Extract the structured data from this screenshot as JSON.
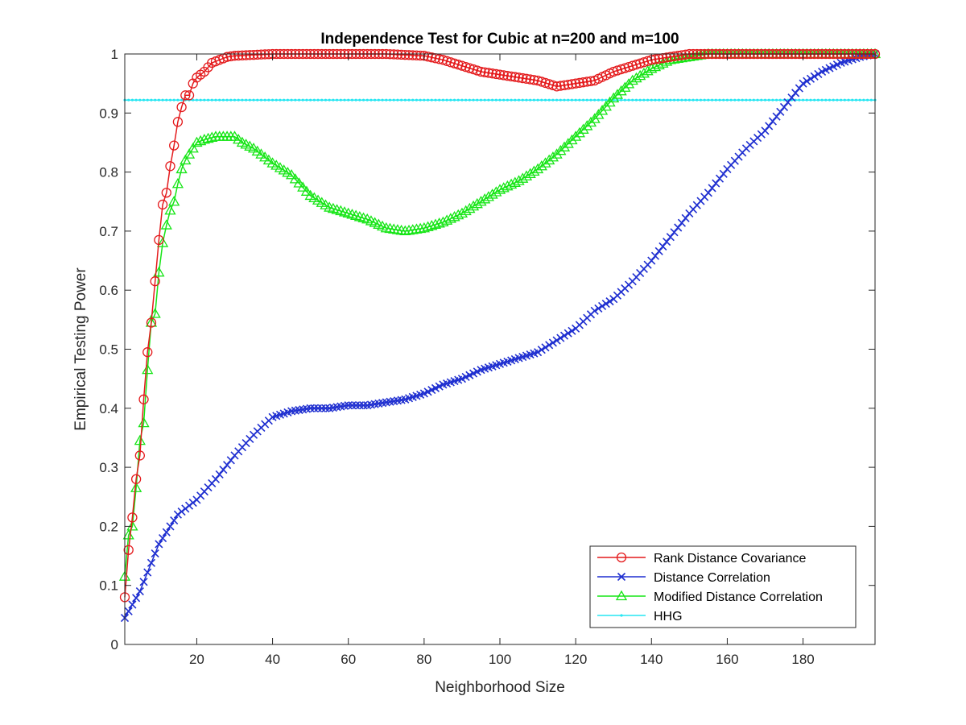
{
  "chart_data": {
    "type": "line",
    "title": "Independence Test for Cubic at n=200 and m=100",
    "xlabel": "Neighborhood Size",
    "ylabel": "Empirical Testing Power",
    "xlim": [
      1,
      199
    ],
    "ylim": [
      0,
      1
    ],
    "xticks": [
      20,
      40,
      60,
      80,
      100,
      120,
      140,
      160,
      180
    ],
    "yticks": [
      0,
      0.1,
      0.2,
      0.3,
      0.4,
      0.5,
      0.6,
      0.7,
      0.8,
      0.9,
      1
    ],
    "ytick_labels": [
      "0",
      "0.1",
      "0.2",
      "0.3",
      "0.4",
      "0.5",
      "0.6",
      "0.7",
      "0.8",
      "0.9",
      "1"
    ],
    "grid": false,
    "legend_position": "bottom-right",
    "series": [
      {
        "name": "Rank Distance Covariance",
        "color": "#e41a1c",
        "marker": "circle",
        "x": [
          1,
          2,
          3,
          4,
          5,
          6,
          7,
          8,
          9,
          10,
          11,
          12,
          13,
          14,
          15,
          16,
          17,
          18,
          19,
          20,
          22,
          24,
          26,
          28,
          30,
          40,
          50,
          60,
          70,
          80,
          85,
          90,
          95,
          100,
          105,
          110,
          115,
          120,
          125,
          130,
          135,
          140,
          145,
          150,
          155,
          160,
          170,
          180,
          190,
          199
        ],
        "y": [
          0.08,
          0.16,
          0.215,
          0.28,
          0.32,
          0.415,
          0.495,
          0.545,
          0.615,
          0.685,
          0.745,
          0.765,
          0.81,
          0.845,
          0.885,
          0.91,
          0.93,
          0.93,
          0.95,
          0.96,
          0.97,
          0.985,
          0.99,
          0.995,
          0.997,
          1,
          1,
          1,
          1,
          0.997,
          0.99,
          0.98,
          0.97,
          0.965,
          0.96,
          0.955,
          0.945,
          0.95,
          0.955,
          0.97,
          0.98,
          0.99,
          0.995,
          1,
          1,
          1,
          1,
          1,
          1,
          1
        ]
      },
      {
        "name": "Distance Correlation",
        "color": "#1f2fd0",
        "marker": "x",
        "x": [
          1,
          5,
          10,
          15,
          20,
          25,
          30,
          35,
          40,
          45,
          50,
          55,
          60,
          65,
          70,
          75,
          80,
          85,
          90,
          95,
          100,
          105,
          110,
          115,
          120,
          125,
          130,
          135,
          140,
          145,
          150,
          155,
          160,
          165,
          170,
          175,
          180,
          185,
          190,
          195,
          199
        ],
        "y": [
          0.045,
          0.09,
          0.17,
          0.22,
          0.245,
          0.28,
          0.32,
          0.355,
          0.385,
          0.395,
          0.4,
          0.4,
          0.405,
          0.405,
          0.41,
          0.415,
          0.425,
          0.44,
          0.45,
          0.465,
          0.475,
          0.485,
          0.495,
          0.515,
          0.535,
          0.565,
          0.585,
          0.615,
          0.65,
          0.69,
          0.73,
          0.765,
          0.805,
          0.84,
          0.87,
          0.91,
          0.95,
          0.97,
          0.985,
          0.995,
          1
        ]
      },
      {
        "name": "Modified Distance Correlation",
        "color": "#16e516",
        "marker": "triangle",
        "x": [
          1,
          2,
          3,
          4,
          5,
          6,
          7,
          8,
          9,
          10,
          11,
          12,
          13,
          14,
          15,
          16,
          17,
          18,
          19,
          20,
          22,
          25,
          28,
          30,
          32,
          35,
          40,
          45,
          50,
          55,
          60,
          65,
          70,
          75,
          80,
          85,
          90,
          95,
          100,
          105,
          110,
          115,
          120,
          125,
          130,
          135,
          140,
          145,
          150,
          155,
          160,
          170,
          180,
          190,
          199
        ],
        "y": [
          0.115,
          0.185,
          0.2,
          0.265,
          0.345,
          0.375,
          0.465,
          0.545,
          0.56,
          0.63,
          0.68,
          0.71,
          0.735,
          0.75,
          0.78,
          0.805,
          0.82,
          0.83,
          0.84,
          0.85,
          0.855,
          0.86,
          0.86,
          0.86,
          0.85,
          0.84,
          0.815,
          0.795,
          0.76,
          0.74,
          0.73,
          0.72,
          0.705,
          0.7,
          0.705,
          0.715,
          0.73,
          0.75,
          0.77,
          0.785,
          0.805,
          0.83,
          0.86,
          0.89,
          0.925,
          0.955,
          0.975,
          0.99,
          0.995,
          1,
          1,
          1,
          1,
          1,
          1
        ]
      },
      {
        "name": "HHG",
        "color": "#26e6f2",
        "marker": "dot",
        "x": [
          1,
          199
        ],
        "y": [
          0.922,
          0.922
        ]
      }
    ]
  }
}
